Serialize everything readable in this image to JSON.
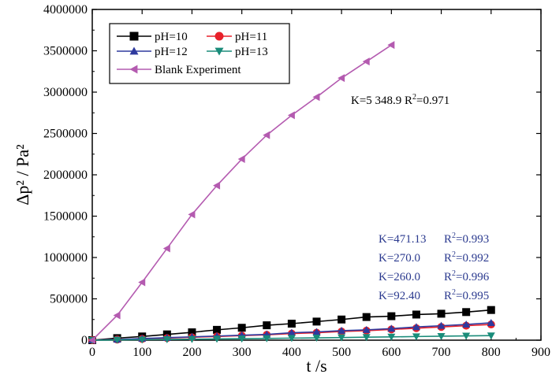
{
  "chart_data": {
    "type": "line",
    "xlabel": "t /s",
    "ylabel": "Δp² / Pa²",
    "xlim": [
      0,
      900
    ],
    "ylim": [
      0,
      4000000
    ],
    "xticks": [
      0,
      100,
      200,
      300,
      400,
      500,
      600,
      700,
      800,
      900
    ],
    "yticks": [
      0,
      500000,
      1000000,
      1500000,
      2000000,
      2500000,
      3000000,
      3500000,
      4000000
    ],
    "x_tick_labels": [
      "0",
      "100",
      "200",
      "300",
      "400",
      "500",
      "600",
      "700",
      "800",
      "900"
    ],
    "y_tick_labels": [
      "0",
      "500000",
      "1000000",
      "1500000",
      "2000000",
      "2500000",
      "3000000",
      "3500000",
      "4000000"
    ],
    "grid": false,
    "legend_position": "top-left",
    "series": [
      {
        "name": "pH=10",
        "color": "#000000",
        "marker": "square",
        "x": [
          0,
          50,
          100,
          150,
          200,
          250,
          300,
          350,
          400,
          450,
          500,
          550,
          600,
          650,
          700,
          750,
          800
        ],
        "y": [
          0,
          25000,
          45000,
          70000,
          95000,
          125000,
          150000,
          180000,
          200000,
          225000,
          250000,
          280000,
          290000,
          310000,
          320000,
          340000,
          365000
        ]
      },
      {
        "name": "pH=11",
        "color": "#e8212a",
        "marker": "circle",
        "x": [
          0,
          50,
          100,
          150,
          200,
          250,
          300,
          350,
          400,
          450,
          500,
          550,
          600,
          650,
          700,
          750,
          800
        ],
        "y": [
          0,
          8000,
          15000,
          25000,
          35000,
          45000,
          55000,
          65000,
          80000,
          90000,
          105000,
          115000,
          130000,
          145000,
          160000,
          175000,
          190000
        ]
      },
      {
        "name": "pH=12",
        "color": "#2f3a9e",
        "marker": "triangle-up",
        "x": [
          0,
          50,
          100,
          150,
          200,
          250,
          300,
          350,
          400,
          450,
          500,
          550,
          600,
          650,
          700,
          750,
          800
        ],
        "y": [
          0,
          8000,
          20000,
          30000,
          40000,
          50000,
          60000,
          70000,
          90000,
          100000,
          115000,
          125000,
          140000,
          160000,
          175000,
          190000,
          210000
        ]
      },
      {
        "name": "pH=13",
        "color": "#1a8c7a",
        "marker": "triangle-down",
        "x": [
          0,
          50,
          100,
          150,
          200,
          250,
          300,
          350,
          400,
          450,
          500,
          550,
          600,
          650,
          700,
          750,
          800
        ],
        "y": [
          0,
          3000,
          6000,
          9000,
          12000,
          15000,
          18000,
          21000,
          25000,
          28000,
          32000,
          36000,
          40000,
          44000,
          48000,
          52000,
          55000
        ]
      },
      {
        "name": "Blank Experiment",
        "color": "#b45bb0",
        "marker": "triangle-left",
        "x": [
          0,
          50,
          100,
          150,
          200,
          250,
          300,
          350,
          400,
          450,
          500,
          550,
          600
        ],
        "y": [
          0,
          300000,
          700000,
          1110000,
          1520000,
          1870000,
          2190000,
          2480000,
          2720000,
          2940000,
          3170000,
          3370000,
          3570000
        ]
      }
    ],
    "annotations": {
      "blank": [
        "K=5 348.9  R",
        "2",
        "=0.971"
      ],
      "fits": [
        {
          "k": "K=471.13",
          "r": "R",
          "sup": "2",
          "val": "=0.993"
        },
        {
          "k": "K=270.0",
          "r": "R",
          "sup": "2",
          "val": "=0.992"
        },
        {
          "k": "K=260.0",
          "r": "R",
          "sup": "2",
          "val": "=0.996"
        },
        {
          "k": "K=92.40",
          "r": "R",
          "sup": "2",
          "val": "=0.995"
        }
      ]
    }
  }
}
